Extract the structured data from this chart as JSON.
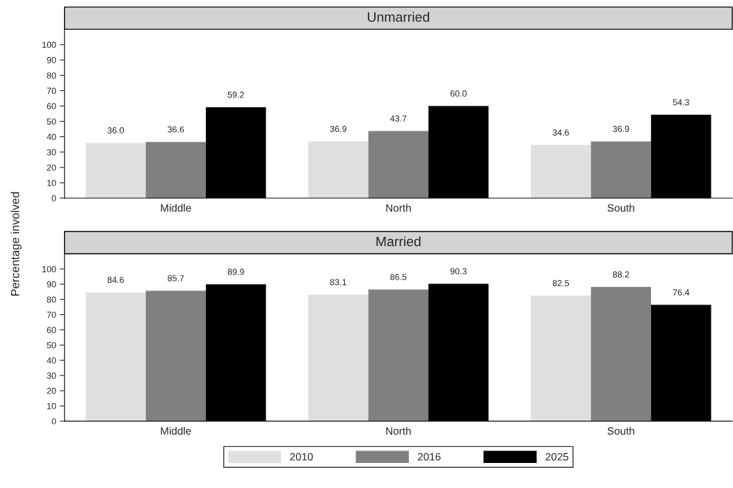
{
  "chart_data": [
    {
      "type": "bar",
      "title": "Unmarried",
      "ylabel": "Percentage involved",
      "categories": [
        "Middle",
        "North",
        "South"
      ],
      "series": [
        {
          "color": "#e0e0e0",
          "values": [
            36.0,
            36.9,
            34.6
          ],
          "value_labels": [
            "36.0",
            "36.9",
            "34.6"
          ]
        },
        {
          "color": "#808080",
          "values": [
            36.6,
            43.7,
            36.9
          ],
          "value_labels": [
            "36.6",
            "43.7",
            "36.9"
          ]
        },
        {
          "color": "#000000",
          "values": [
            59.2,
            60.0,
            54.3
          ],
          "value_labels": [
            "59.2",
            "60.0",
            "54.3"
          ]
        }
      ],
      "ylim": [
        0,
        110
      ],
      "yticks": [
        0,
        10,
        20,
        30,
        40,
        50,
        60,
        70,
        80,
        90,
        100
      ],
      "grid": false,
      "legend": false
    },
    {
      "type": "bar",
      "title": "Married",
      "categories": [
        "Middle",
        "North",
        "South"
      ],
      "series": [
        {
          "name": "2010",
          "color": "#e0e0e0",
          "values": [
            84.6,
            83.1,
            82.5
          ],
          "value_labels": [
            "84.6",
            "83.1",
            "82.5"
          ]
        },
        {
          "name": "2016",
          "color": "#808080",
          "values": [
            85.7,
            86.5,
            88.2
          ],
          "value_labels": [
            "85.7",
            "86.5",
            "88.2"
          ]
        },
        {
          "name": "2025",
          "color": "#000000",
          "values": [
            89.9,
            90.3,
            76.4
          ],
          "value_labels": [
            "89.9",
            "90.3",
            "76.4"
          ]
        }
      ],
      "ylim": [
        0,
        110
      ],
      "yticks": [
        0,
        10,
        20,
        30,
        40,
        50,
        60,
        70,
        80,
        90,
        100
      ],
      "grid": false,
      "legend": "bottom"
    }
  ]
}
